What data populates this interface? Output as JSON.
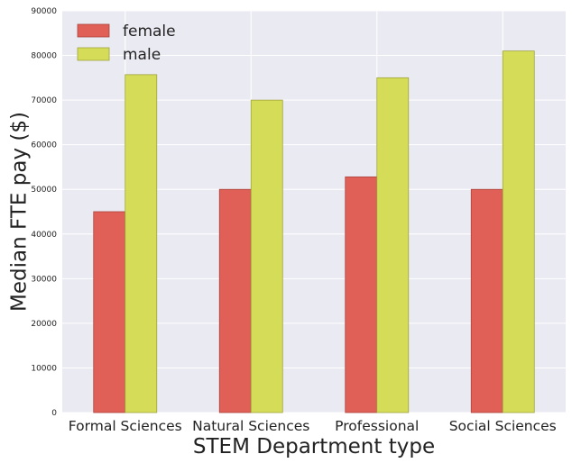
{
  "chart_data": {
    "type": "bar",
    "categories": [
      "Formal Sciences",
      "Natural Sciences",
      "Professional",
      "Social Sciences"
    ],
    "series": [
      {
        "name": "female",
        "values": [
          45000,
          50000,
          52800,
          50000
        ]
      },
      {
        "name": "male",
        "values": [
          75700,
          70000,
          75000,
          81000
        ]
      }
    ],
    "xlabel": "STEM Department type",
    "ylabel": "Median FTE pay ($)",
    "ylim": [
      0,
      90000
    ],
    "yticks": [
      "0",
      "10000",
      "20000",
      "30000",
      "40000",
      "50000",
      "60000",
      "70000",
      "80000",
      "90000"
    ],
    "grid": true,
    "legend_position": "top-left",
    "colors": {
      "background": "#EAEAF2",
      "grid": "#FFFFFF",
      "female": "#E06057",
      "female_edge": "#A8443D",
      "male": "#D5DC58",
      "male_edge": "#9FA33E"
    }
  }
}
